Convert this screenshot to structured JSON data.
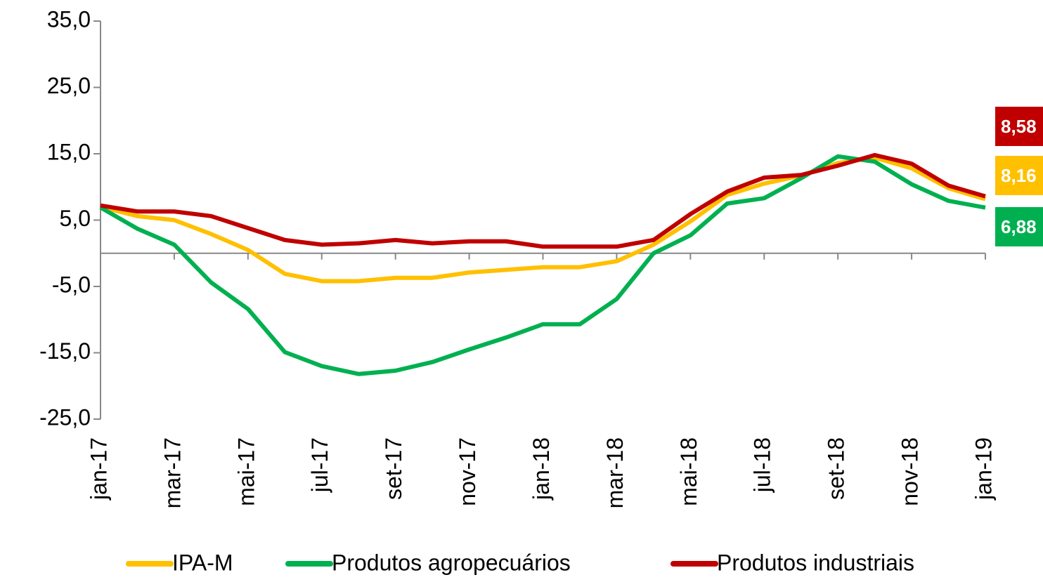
{
  "chart_data": {
    "type": "line",
    "categories": [
      "jan-17",
      null,
      "mar-17",
      null,
      "mai-17",
      null,
      "jul-17",
      null,
      "set-17",
      null,
      "nov-17",
      null,
      "jan-18",
      null,
      "mar-18",
      null,
      "mai-18",
      null,
      "jul-18",
      null,
      "set-18",
      null,
      "nov-18",
      null,
      "jan-19"
    ],
    "series": [
      {
        "name": "IPA-M",
        "color": "#FFC000",
        "values": [
          7.0,
          5.6,
          5.0,
          2.9,
          0.5,
          -3.1,
          -4.2,
          -4.2,
          -3.7,
          -3.7,
          -2.9,
          -2.5,
          -2.1,
          -2.1,
          -1.2,
          1.3,
          4.8,
          8.8,
          10.5,
          11.7,
          13.6,
          14.4,
          12.8,
          9.8,
          8.16
        ],
        "value_labels": [
          null,
          null,
          null,
          null,
          null,
          null,
          null,
          null,
          null,
          null,
          null,
          null,
          null,
          null,
          null,
          null,
          null,
          null,
          null,
          null,
          null,
          null,
          null,
          null,
          "8,16"
        ]
      },
      {
        "name": "Produtos agropecuários",
        "color": "#00B050",
        "values": [
          6.9,
          3.7,
          1.3,
          -4.4,
          -8.4,
          -14.9,
          -17.0,
          -18.2,
          -17.7,
          -16.4,
          -14.5,
          -12.7,
          -10.7,
          -10.7,
          -6.9,
          0.0,
          2.7,
          7.5,
          8.3,
          11.3,
          14.6,
          13.8,
          10.4,
          7.9,
          6.88
        ],
        "value_labels": [
          null,
          null,
          null,
          null,
          null,
          null,
          null,
          null,
          null,
          null,
          null,
          null,
          null,
          null,
          null,
          null,
          null,
          null,
          null,
          null,
          null,
          null,
          null,
          null,
          "6,88"
        ]
      },
      {
        "name": "Produtos industriais",
        "color": "#C00000",
        "values": [
          7.2,
          6.3,
          6.3,
          5.6,
          3.8,
          2.0,
          1.3,
          1.5,
          2.0,
          1.5,
          1.8,
          1.8,
          1.0,
          1.0,
          1.0,
          2.0,
          5.9,
          9.3,
          11.4,
          11.8,
          13.2,
          14.8,
          13.5,
          10.2,
          8.58
        ],
        "value_labels": [
          null,
          null,
          null,
          null,
          null,
          null,
          null,
          null,
          null,
          null,
          null,
          null,
          null,
          null,
          null,
          null,
          null,
          null,
          null,
          null,
          null,
          null,
          null,
          null,
          "8,58"
        ]
      }
    ],
    "ylim": [
      -25,
      35
    ],
    "yticks": [
      {
        "value": -25,
        "label": "-25,0"
      },
      {
        "value": -15,
        "label": "-15,0"
      },
      {
        "value": -5,
        "label": "-5,0"
      },
      {
        "value": 5,
        "label": "5,0"
      },
      {
        "value": 15,
        "label": "15,0"
      },
      {
        "value": 25,
        "label": "25,0"
      },
      {
        "value": 35,
        "label": "35,0"
      }
    ],
    "grid": false,
    "legend": "bottom"
  }
}
